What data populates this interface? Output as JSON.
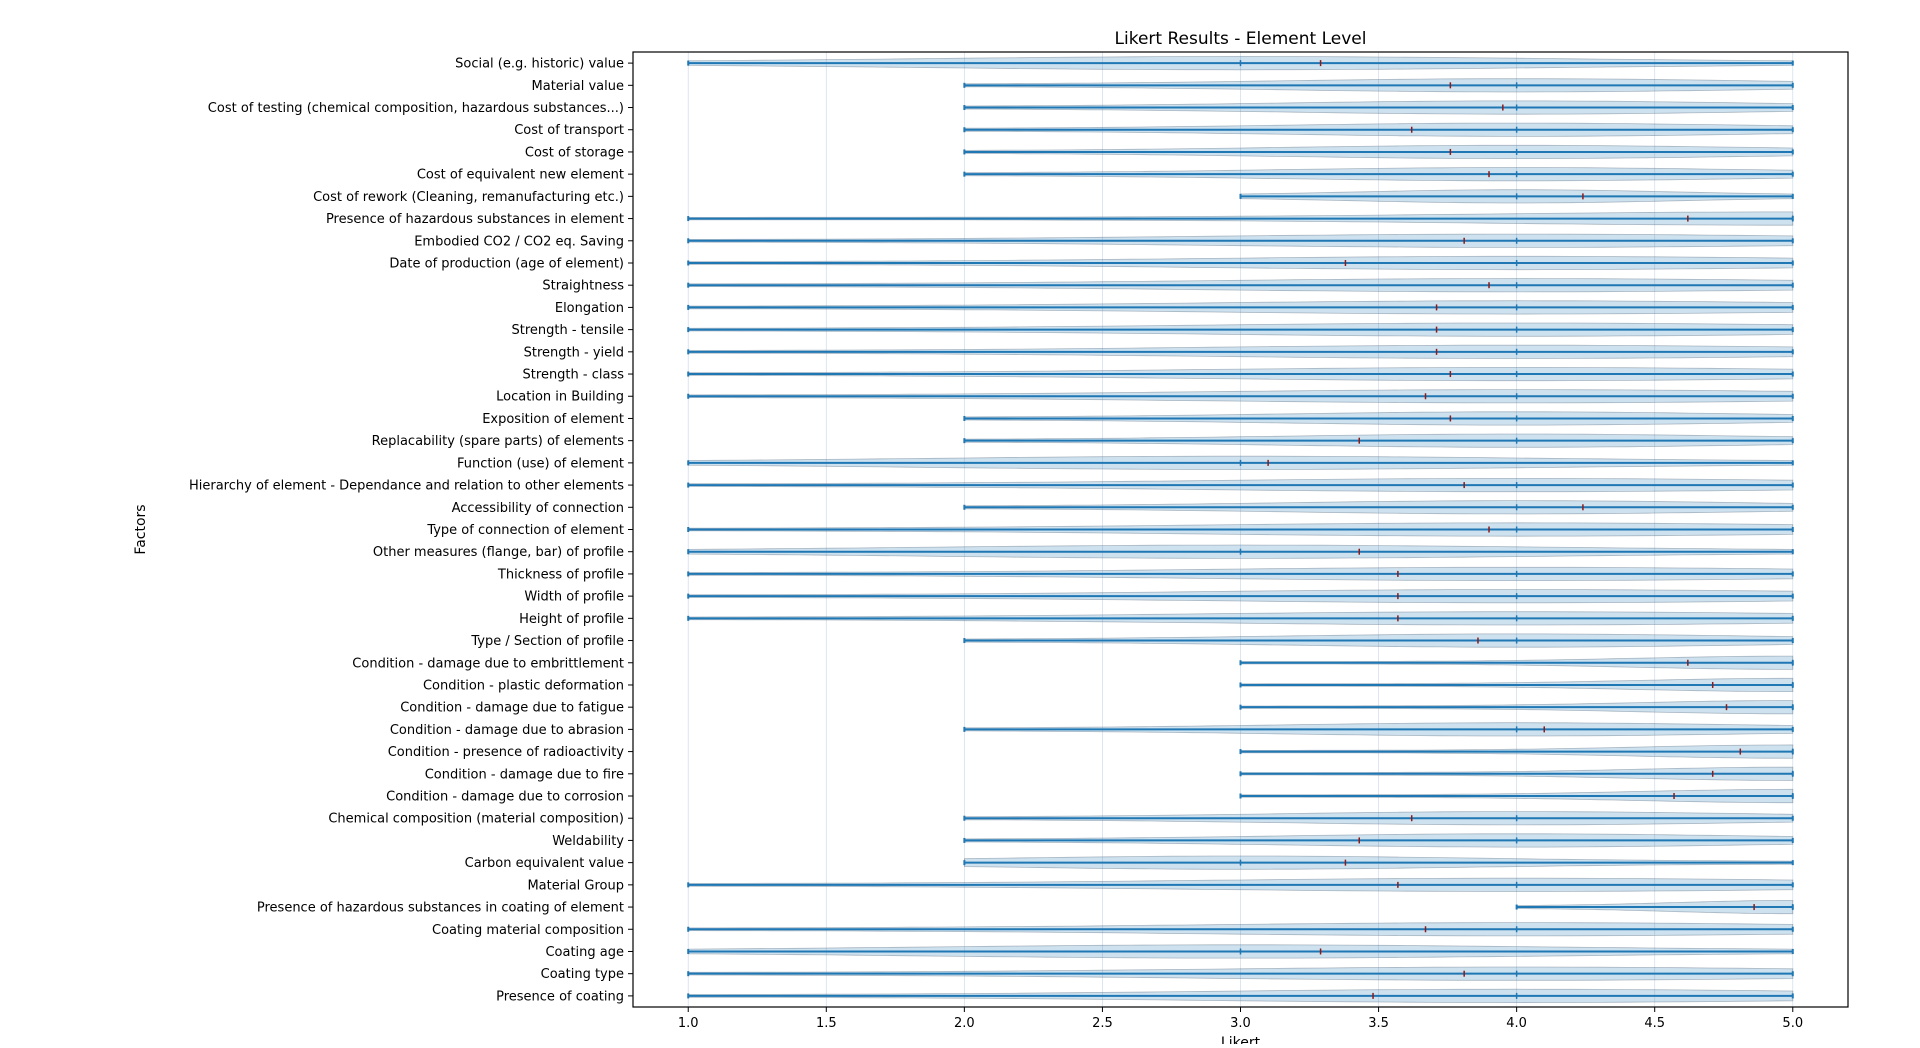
{
  "chart_data": {
    "type": "violin",
    "orientation": "horizontal",
    "title": "Likert Results - Element Level",
    "xlabel": "Likert",
    "ylabel": "Factors",
    "xlim": [
      0.8,
      5.2
    ],
    "xticks": [
      1.0,
      1.5,
      2.0,
      2.5,
      3.0,
      3.5,
      4.0,
      4.5,
      5.0
    ],
    "xtick_labels": [
      "1.0",
      "1.5",
      "2.0",
      "2.5",
      "3.0",
      "3.5",
      "4.0",
      "4.5",
      "5.0"
    ],
    "grid": "x",
    "colors": {
      "body": "#1f77b4",
      "line": "#1f77b4",
      "median": "#1f77b4",
      "mean": "#8b1a1a"
    },
    "factors": [
      {
        "label": "Social (e.g. historic) value",
        "min": 1,
        "max": 5,
        "median": 3,
        "mean": 3.29
      },
      {
        "label": "Material value",
        "min": 2,
        "max": 5,
        "median": 4,
        "mean": 3.76
      },
      {
        "label": "Cost of testing (chemical composition, hazardous substances...)",
        "min": 2,
        "max": 5,
        "median": 4,
        "mean": 3.95
      },
      {
        "label": "Cost of transport",
        "min": 2,
        "max": 5,
        "median": 4,
        "mean": 3.62
      },
      {
        "label": "Cost of storage",
        "min": 2,
        "max": 5,
        "median": 4,
        "mean": 3.76
      },
      {
        "label": "Cost of equivalent new element",
        "min": 2,
        "max": 5,
        "median": 4,
        "mean": 3.9
      },
      {
        "label": "Cost of rework (Cleaning, remanufacturing etc.)",
        "min": 3,
        "max": 5,
        "median": 4,
        "mean": 4.24
      },
      {
        "label": "Presence of hazardous substances in element",
        "min": 1,
        "max": 5,
        "median": 5,
        "mean": 4.62
      },
      {
        "label": "Embodied CO2 / CO2 eq. Saving",
        "min": 1,
        "max": 5,
        "median": 4,
        "mean": 3.81
      },
      {
        "label": "Date of production (age of element)",
        "min": 1,
        "max": 5,
        "median": 4,
        "mean": 3.38
      },
      {
        "label": "Straightness",
        "min": 1,
        "max": 5,
        "median": 4,
        "mean": 3.9
      },
      {
        "label": "Elongation",
        "min": 1,
        "max": 5,
        "median": 4,
        "mean": 3.71
      },
      {
        "label": "Strength - tensile",
        "min": 1,
        "max": 5,
        "median": 4,
        "mean": 3.71
      },
      {
        "label": "Strength - yield",
        "min": 1,
        "max": 5,
        "median": 4,
        "mean": 3.71
      },
      {
        "label": "Strength - class",
        "min": 1,
        "max": 5,
        "median": 4,
        "mean": 3.76
      },
      {
        "label": "Location in Building",
        "min": 1,
        "max": 5,
        "median": 4,
        "mean": 3.67
      },
      {
        "label": "Exposition of element",
        "min": 2,
        "max": 5,
        "median": 4,
        "mean": 3.76
      },
      {
        "label": "Replacability (spare parts) of elements",
        "min": 2,
        "max": 5,
        "median": 4,
        "mean": 3.43
      },
      {
        "label": "Function (use) of element",
        "min": 1,
        "max": 5,
        "median": 3,
        "mean": 3.1
      },
      {
        "label": "Hierarchy of element - Dependance and relation to other elements",
        "min": 1,
        "max": 5,
        "median": 4,
        "mean": 3.81
      },
      {
        "label": "Accessibility of connection",
        "min": 2,
        "max": 5,
        "median": 4,
        "mean": 4.24
      },
      {
        "label": "Type of connection of element",
        "min": 1,
        "max": 5,
        "median": 4,
        "mean": 3.9
      },
      {
        "label": "Other measures (flange, bar) of profile",
        "min": 1,
        "max": 5,
        "median": 3,
        "mean": 3.43
      },
      {
        "label": "Thickness of profile",
        "min": 1,
        "max": 5,
        "median": 4,
        "mean": 3.57
      },
      {
        "label": "Width of profile",
        "min": 1,
        "max": 5,
        "median": 4,
        "mean": 3.57
      },
      {
        "label": "Height of profile",
        "min": 1,
        "max": 5,
        "median": 4,
        "mean": 3.57
      },
      {
        "label": "Type / Section of profile",
        "min": 2,
        "max": 5,
        "median": 4,
        "mean": 3.86
      },
      {
        "label": "Condition - damage due to embrittlement",
        "min": 3,
        "max": 5,
        "median": 5,
        "mean": 4.62
      },
      {
        "label": "Condition - plastic deformation",
        "min": 3,
        "max": 5,
        "median": 5,
        "mean": 4.71
      },
      {
        "label": "Condition - damage due to fatigue",
        "min": 3,
        "max": 5,
        "median": 5,
        "mean": 4.76
      },
      {
        "label": "Condition - damage due to abrasion",
        "min": 2,
        "max": 5,
        "median": 4,
        "mean": 4.1
      },
      {
        "label": "Condition - presence of radioactivity",
        "min": 3,
        "max": 5,
        "median": 5,
        "mean": 4.81
      },
      {
        "label": "Condition - damage due to fire",
        "min": 3,
        "max": 5,
        "median": 5,
        "mean": 4.71
      },
      {
        "label": "Condition - damage due to corrosion",
        "min": 3,
        "max": 5,
        "median": 5,
        "mean": 4.57
      },
      {
        "label": "Chemical composition (material composition)",
        "min": 2,
        "max": 5,
        "median": 4,
        "mean": 3.62
      },
      {
        "label": "Weldability",
        "min": 2,
        "max": 5,
        "median": 4,
        "mean": 3.43
      },
      {
        "label": "Carbon equivalent value",
        "min": 2,
        "max": 5,
        "median": 3,
        "mean": 3.38
      },
      {
        "label": "Material Group",
        "min": 1,
        "max": 5,
        "median": 4,
        "mean": 3.57
      },
      {
        "label": "Presence of hazardous substances in coating of element",
        "min": 4,
        "max": 5,
        "median": 5,
        "mean": 4.86
      },
      {
        "label": "Coating material composition",
        "min": 1,
        "max": 5,
        "median": 4,
        "mean": 3.67
      },
      {
        "label": "Coating age",
        "min": 1,
        "max": 5,
        "median": 3,
        "mean": 3.29
      },
      {
        "label": "Coating type",
        "min": 1,
        "max": 5,
        "median": 4,
        "mean": 3.81
      },
      {
        "label": "Presence of coating",
        "min": 1,
        "max": 5,
        "median": 4,
        "mean": 3.48
      }
    ]
  }
}
